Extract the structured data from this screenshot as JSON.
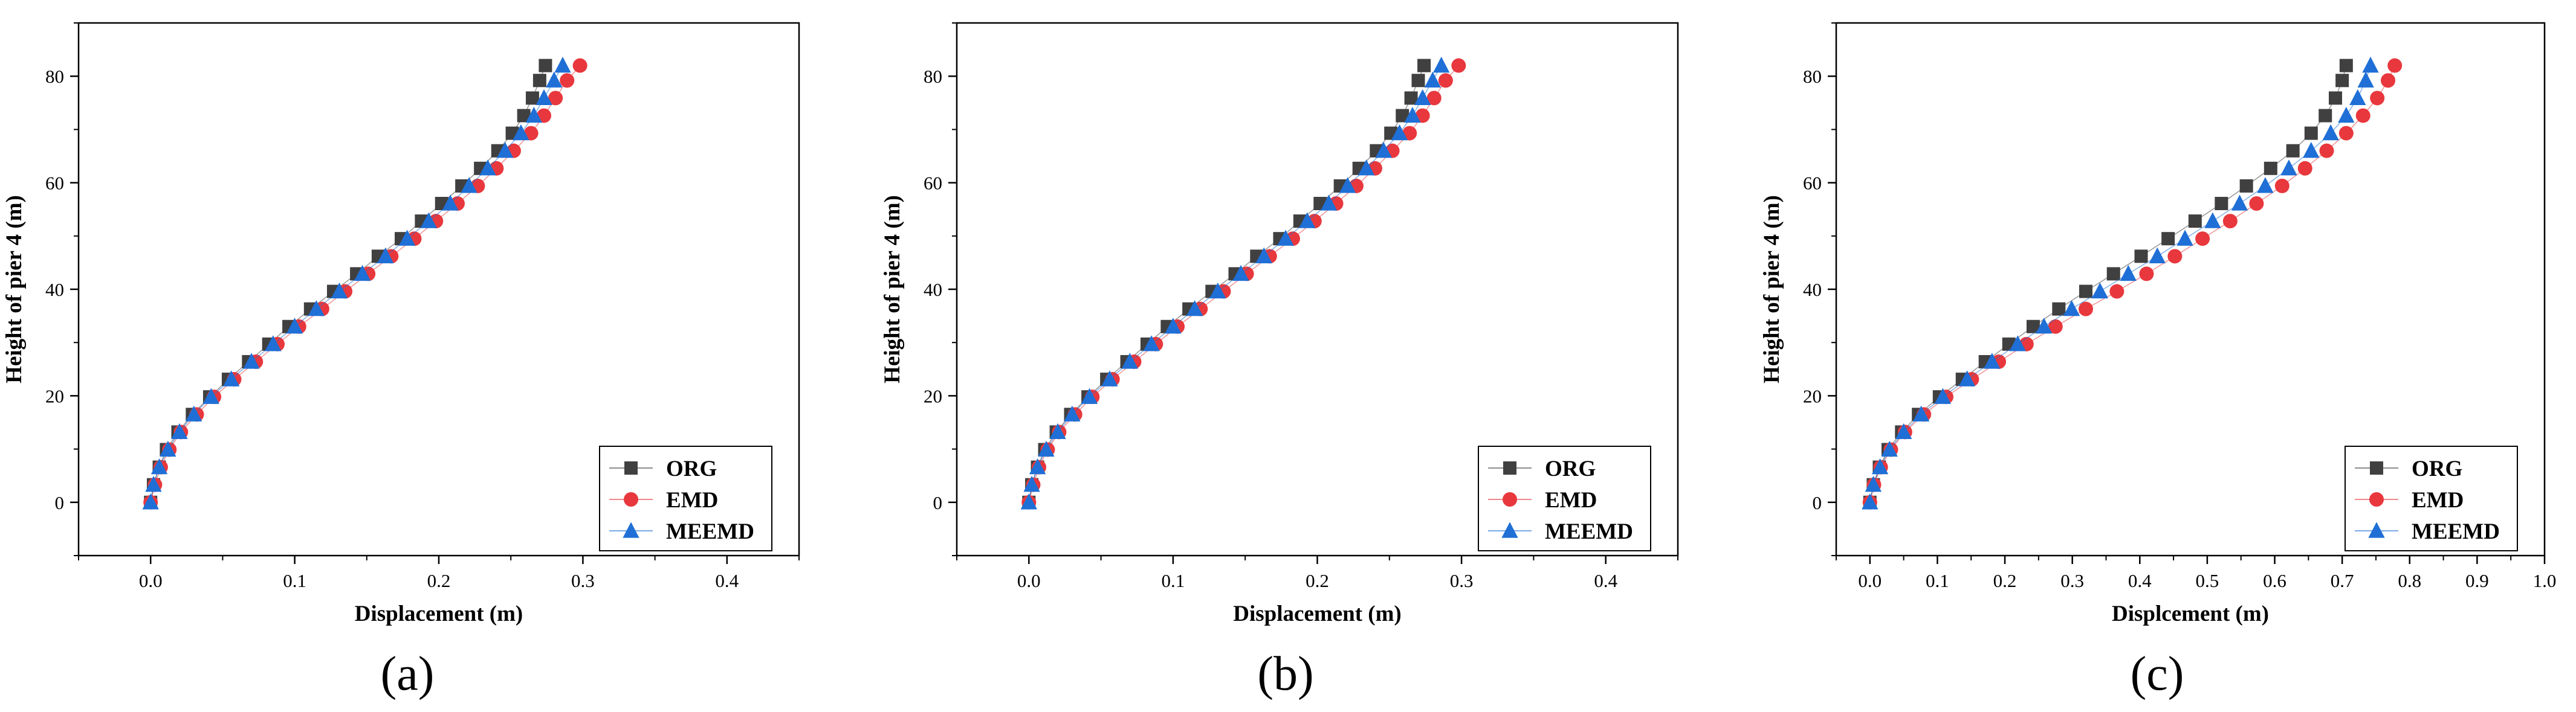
{
  "colors": {
    "ORG": "#404040",
    "EMD": "#e8383d",
    "MEEMD": "#1f6fd6"
  },
  "chart_data": [
    {
      "type": "scatter",
      "caption": "(a)",
      "xlabel": "Displacement (m)",
      "ylabel": "Height of pier 4 (m)",
      "xlim": [
        -0.05,
        0.45
      ],
      "ylim": [
        -10,
        90
      ],
      "xticks": [
        0.0,
        0.1,
        0.2,
        0.3,
        0.4
      ],
      "xtick_labels": [
        "0.0",
        "0.1",
        "0.2",
        "0.3",
        "0.4"
      ],
      "yticks": [
        0,
        20,
        40,
        60,
        80
      ],
      "ytick_labels": [
        "0",
        "20",
        "40",
        "60",
        "80"
      ],
      "legend_position": "bottom-right",
      "heights": [
        0,
        3.3,
        6.6,
        9.9,
        13.2,
        16.5,
        19.8,
        23.1,
        26.4,
        29.7,
        33.0,
        36.3,
        39.6,
        42.9,
        46.2,
        49.5,
        52.8,
        56.1,
        59.4,
        62.7,
        66.0,
        69.3,
        72.6,
        75.9,
        79.2,
        82.0
      ],
      "series": [
        {
          "name": "ORG",
          "marker": "square",
          "x": [
            0.0,
            0.002,
            0.006,
            0.011,
            0.019,
            0.029,
            0.041,
            0.054,
            0.068,
            0.082,
            0.096,
            0.111,
            0.127,
            0.143,
            0.158,
            0.174,
            0.188,
            0.202,
            0.216,
            0.229,
            0.241,
            0.251,
            0.259,
            0.265,
            0.27,
            0.274
          ]
        },
        {
          "name": "EMD",
          "marker": "circle",
          "x": [
            0.0,
            0.003,
            0.007,
            0.013,
            0.021,
            0.032,
            0.044,
            0.058,
            0.073,
            0.088,
            0.103,
            0.119,
            0.135,
            0.151,
            0.167,
            0.183,
            0.198,
            0.213,
            0.227,
            0.24,
            0.252,
            0.264,
            0.273,
            0.281,
            0.289,
            0.298
          ]
        },
        {
          "name": "MEEMD",
          "marker": "triangle",
          "x": [
            0.0,
            0.002,
            0.006,
            0.012,
            0.02,
            0.03,
            0.042,
            0.056,
            0.07,
            0.085,
            0.1,
            0.115,
            0.131,
            0.147,
            0.163,
            0.178,
            0.193,
            0.208,
            0.221,
            0.234,
            0.246,
            0.257,
            0.266,
            0.273,
            0.28,
            0.286
          ]
        }
      ]
    },
    {
      "type": "scatter",
      "caption": "(b)",
      "xlabel": "Displacement (m)",
      "ylabel": "Height of pier 4 (m)",
      "xlim": [
        -0.05,
        0.45
      ],
      "ylim": [
        -10,
        90
      ],
      "xticks": [
        0.0,
        0.1,
        0.2,
        0.3,
        0.4
      ],
      "xtick_labels": [
        "0.0",
        "0.1",
        "0.2",
        "0.3",
        "0.4"
      ],
      "yticks": [
        0,
        20,
        40,
        60,
        80
      ],
      "ytick_labels": [
        "0",
        "20",
        "40",
        "60",
        "80"
      ],
      "legend_position": "bottom-right",
      "heights": [
        0,
        3.3,
        6.6,
        9.9,
        13.2,
        16.5,
        19.8,
        23.1,
        26.4,
        29.7,
        33.0,
        36.3,
        39.6,
        42.9,
        46.2,
        49.5,
        52.8,
        56.1,
        59.4,
        62.7,
        66.0,
        69.3,
        72.6,
        75.9,
        79.2,
        82.0
      ],
      "series": [
        {
          "name": "ORG",
          "marker": "square",
          "x": [
            0.0,
            0.002,
            0.006,
            0.011,
            0.019,
            0.029,
            0.041,
            0.054,
            0.068,
            0.082,
            0.096,
            0.111,
            0.127,
            0.143,
            0.158,
            0.174,
            0.188,
            0.202,
            0.216,
            0.229,
            0.241,
            0.251,
            0.259,
            0.265,
            0.27,
            0.274
          ]
        },
        {
          "name": "EMD",
          "marker": "circle",
          "x": [
            0.0,
            0.003,
            0.007,
            0.013,
            0.021,
            0.032,
            0.044,
            0.058,
            0.073,
            0.088,
            0.103,
            0.119,
            0.135,
            0.151,
            0.167,
            0.183,
            0.198,
            0.213,
            0.227,
            0.24,
            0.252,
            0.264,
            0.273,
            0.281,
            0.289,
            0.298
          ]
        },
        {
          "name": "MEEMD",
          "marker": "triangle",
          "x": [
            0.0,
            0.002,
            0.006,
            0.012,
            0.02,
            0.03,
            0.042,
            0.056,
            0.07,
            0.085,
            0.1,
            0.115,
            0.131,
            0.147,
            0.163,
            0.178,
            0.193,
            0.208,
            0.221,
            0.234,
            0.246,
            0.257,
            0.266,
            0.273,
            0.28,
            0.286
          ]
        }
      ]
    },
    {
      "type": "scatter",
      "caption": "(c)",
      "xlabel": "Displcement (m)",
      "ylabel": "Height of pier 4 (m)",
      "xlim": [
        -0.05,
        1.0
      ],
      "ylim": [
        -10,
        90
      ],
      "xticks": [
        0.0,
        0.1,
        0.2,
        0.3,
        0.4,
        0.5,
        0.6,
        0.7,
        0.8,
        0.9,
        1.0
      ],
      "xtick_labels": [
        "0.0",
        "0.1",
        "0.2",
        "0.3",
        "0.4",
        "0.5",
        "0.6",
        "0.7",
        "0.8",
        "0.9",
        "1.0"
      ],
      "yticks": [
        0,
        20,
        40,
        60,
        80
      ],
      "ytick_labels": [
        "0",
        "20",
        "40",
        "60",
        "80"
      ],
      "legend_position": "bottom-right",
      "heights": [
        0,
        3.3,
        6.6,
        9.9,
        13.2,
        16.5,
        19.8,
        23.1,
        26.4,
        29.7,
        33.0,
        36.3,
        39.6,
        42.9,
        46.2,
        49.5,
        52.8,
        56.1,
        59.4,
        62.7,
        66.0,
        69.3,
        72.6,
        75.9,
        79.2,
        82.0
      ],
      "series": [
        {
          "name": "ORG",
          "marker": "square",
          "x": [
            0.0,
            0.005,
            0.014,
            0.027,
            0.047,
            0.072,
            0.103,
            0.137,
            0.171,
            0.206,
            0.242,
            0.28,
            0.32,
            0.361,
            0.402,
            0.442,
            0.482,
            0.521,
            0.558,
            0.594,
            0.627,
            0.654,
            0.675,
            0.69,
            0.7,
            0.706
          ]
        },
        {
          "name": "EMD",
          "marker": "circle",
          "x": [
            0.0,
            0.006,
            0.016,
            0.031,
            0.052,
            0.08,
            0.113,
            0.151,
            0.191,
            0.232,
            0.275,
            0.32,
            0.366,
            0.41,
            0.452,
            0.493,
            0.534,
            0.573,
            0.611,
            0.645,
            0.677,
            0.706,
            0.731,
            0.752,
            0.768,
            0.778
          ]
        },
        {
          "name": "MEEMD",
          "marker": "triangle",
          "x": [
            0.0,
            0.005,
            0.015,
            0.029,
            0.05,
            0.076,
            0.108,
            0.144,
            0.181,
            0.219,
            0.258,
            0.299,
            0.341,
            0.383,
            0.426,
            0.467,
            0.508,
            0.548,
            0.586,
            0.621,
            0.654,
            0.683,
            0.706,
            0.723,
            0.735,
            0.742
          ]
        }
      ]
    }
  ]
}
